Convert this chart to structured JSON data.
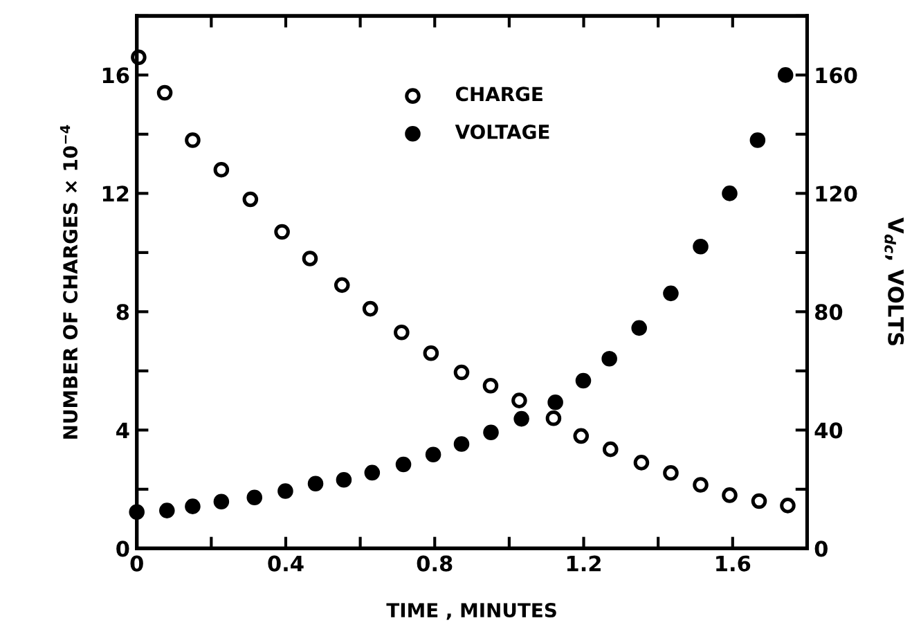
{
  "chart_data": {
    "type": "scatter",
    "xlabel": "TIME , MINUTES",
    "ylabel": "NUMBER OF CHARGES × 10$^{−4}$",
    "y2label": "V$_{dc}$, VOLTS",
    "xlim": [
      0,
      1.8
    ],
    "ylim": [
      0,
      18
    ],
    "y2lim": [
      0,
      180
    ],
    "xticks": [
      0,
      {
        "value": 0.2,
        "label": null
      },
      0.4,
      {
        "value": 0.6,
        "label": null
      },
      0.8,
      {
        "value": 1.0,
        "label": null
      },
      1.2,
      {
        "value": 1.4,
        "label": null
      },
      1.6,
      {
        "value": 1.8,
        "label": null
      }
    ],
    "yticks": [
      0,
      {
        "value": 2,
        "label": null
      },
      4,
      {
        "value": 6,
        "label": null
      },
      8,
      {
        "value": 10,
        "label": null
      },
      12,
      {
        "value": 14,
        "label": null
      },
      16,
      {
        "value": 18,
        "label": null
      }
    ],
    "y2ticks": [
      0,
      {
        "value": 20,
        "label": null
      },
      40,
      {
        "value": 60,
        "label": null
      },
      80,
      {
        "value": 100,
        "label": null
      },
      120,
      {
        "value": 140,
        "label": null
      },
      160,
      {
        "value": 180,
        "label": null
      }
    ],
    "legend": "top",
    "grid": false,
    "series": [
      {
        "name": "CHARGE",
        "color": "#000000",
        "marker": "circle",
        "x": [
          0.005,
          0.075,
          0.15,
          0.227,
          0.305,
          0.39,
          0.465,
          0.551,
          0.627,
          0.711,
          0.79,
          0.872,
          0.95,
          1.027,
          1.119,
          1.193,
          1.272,
          1.355,
          1.434,
          1.514,
          1.592,
          1.671,
          1.748
        ],
        "values": [
          16.6,
          15.4,
          13.8,
          12.8,
          11.8,
          10.7,
          9.8,
          8.9,
          8.1,
          7.3,
          6.6,
          5.95,
          5.5,
          5.0,
          4.4,
          3.8,
          3.35,
          2.9,
          2.55,
          2.15,
          1.8,
          1.6,
          1.45
        ]
      },
      {
        "name": "VOLTAGE",
        "color": "#000000",
        "marker": "circle",
        "axis": "y2",
        "x": [
          0.0,
          0.081,
          0.15,
          0.227,
          0.316,
          0.399,
          0.48,
          0.556,
          0.632,
          0.716,
          0.796,
          0.872,
          0.951,
          1.033,
          1.124,
          1.199,
          1.269,
          1.349,
          1.434,
          1.514,
          1.592,
          1.667,
          1.742
        ],
        "values": [
          12.3,
          12.8,
          14.2,
          15.8,
          17.2,
          19.4,
          21.9,
          23.2,
          25.6,
          28.4,
          31.7,
          35.3,
          39.2,
          43.8,
          49.4,
          56.7,
          64.1,
          74.5,
          86.2,
          102,
          120,
          138,
          160
        ]
      }
    ]
  }
}
